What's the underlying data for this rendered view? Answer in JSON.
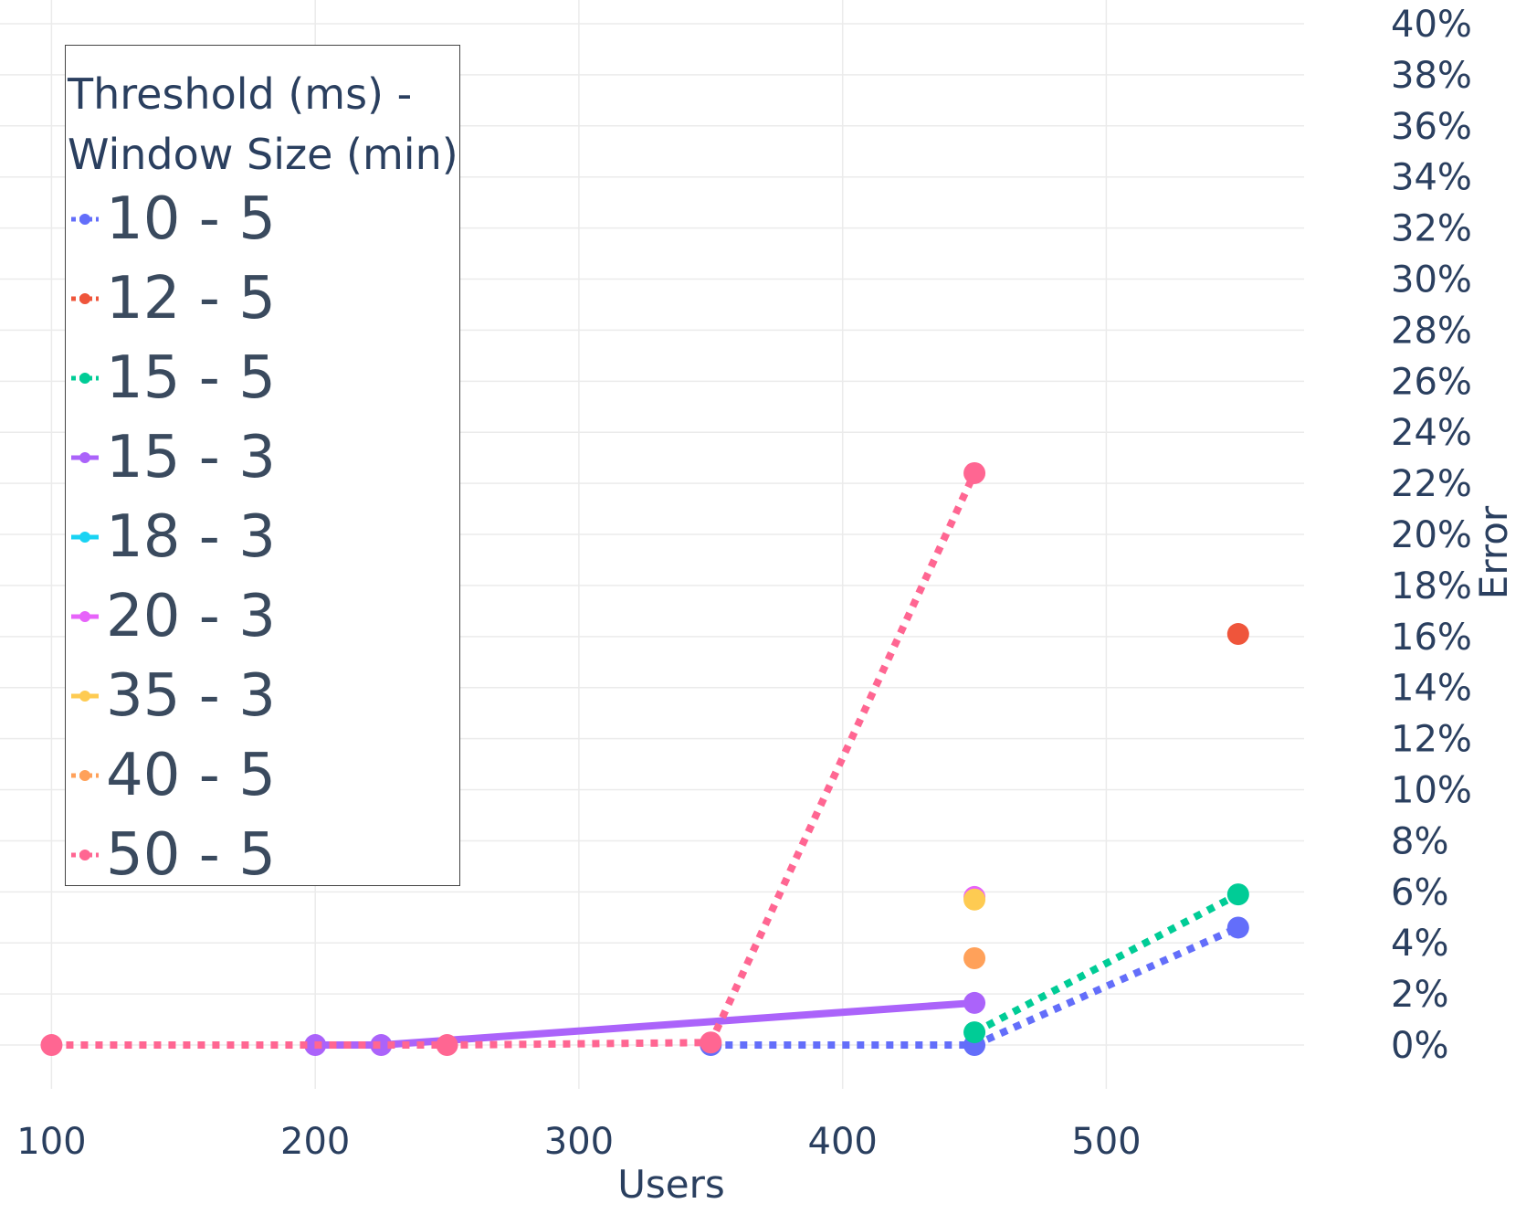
{
  "chart_data": {
    "type": "line",
    "xlabel": "Users",
    "ylabel": "Error",
    "xlim": [
      95,
      575
    ],
    "ylim": [
      -0.01,
      0.4
    ],
    "x_ticks": [
      100,
      200,
      300,
      400,
      500
    ],
    "x_tick_labels": [
      "100",
      "200",
      "300",
      "400",
      "500"
    ],
    "y_ticks": [
      0,
      0.02,
      0.04,
      0.06,
      0.08,
      0.1,
      0.12,
      0.14,
      0.16,
      0.18,
      0.2,
      0.22,
      0.24,
      0.26,
      0.28,
      0.3,
      0.32,
      0.34,
      0.36,
      0.38,
      0.4
    ],
    "y_tick_labels": [
      "0%",
      "2%",
      "4%",
      "6%",
      "8%",
      "10%",
      "12%",
      "14%",
      "16%",
      "18%",
      "20%",
      "22%",
      "24%",
      "26%",
      "28%",
      "30%",
      "32%",
      "34%",
      "36%",
      "38%",
      "40%"
    ],
    "y_axis_side": "right",
    "grid": true,
    "legend_position": "top-left",
    "legend_title": "Threshold (ms) -\nWindow Size (min)",
    "series": [
      {
        "name": "10 - 5",
        "color": "#636efa",
        "dash": "dot",
        "x": [
          350,
          450,
          550
        ],
        "y": [
          0.0,
          0.0,
          0.046
        ]
      },
      {
        "name": "12 - 5",
        "color": "#ef553b",
        "dash": "dot",
        "x": [
          550
        ],
        "y": [
          0.161
        ]
      },
      {
        "name": "15 - 5",
        "color": "#00cc96",
        "dash": "dot",
        "x": [
          450,
          550
        ],
        "y": [
          0.005,
          0.059
        ]
      },
      {
        "name": "15 - 3",
        "color": "#ab63fa",
        "dash": "solid",
        "x": [
          200,
          225,
          450
        ],
        "y": [
          0.0,
          0.0,
          0.0165
        ]
      },
      {
        "name": "18 - 3",
        "color": "#19d3f3",
        "dash": "solid",
        "x": [],
        "y": []
      },
      {
        "name": "20 - 3",
        "color": "#e763fa",
        "dash": "solid",
        "x": [
          450
        ],
        "y": [
          0.058
        ]
      },
      {
        "name": "35 - 3",
        "color": "#fecb52",
        "dash": "solid",
        "x": [
          450
        ],
        "y": [
          0.057
        ]
      },
      {
        "name": "40 - 5",
        "color": "#ffa15a",
        "dash": "dot",
        "x": [
          450
        ],
        "y": [
          0.034
        ]
      },
      {
        "name": "50 - 5",
        "color": "#ff6692",
        "dash": "dot",
        "x": [
          100,
          250,
          350,
          450
        ],
        "y": [
          0.0,
          0.0,
          0.001,
          0.224
        ]
      }
    ]
  }
}
